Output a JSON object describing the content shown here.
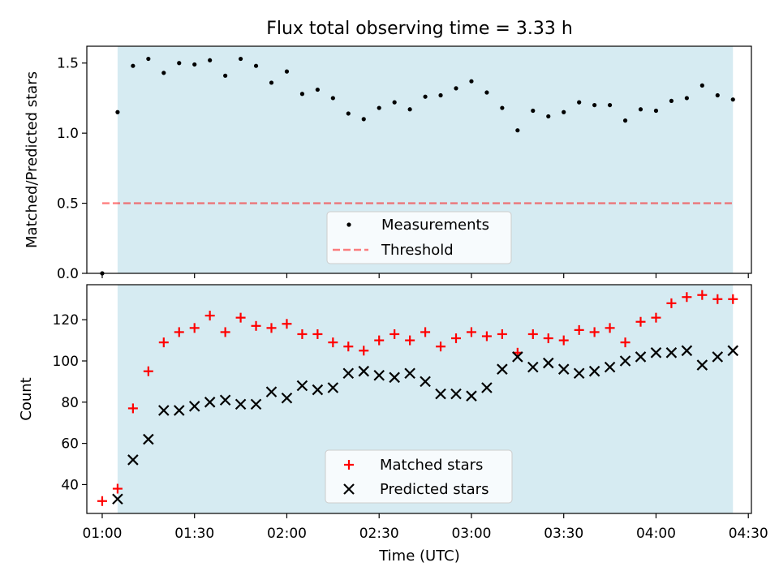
{
  "title": "Flux total observing time = 3.33 h",
  "colors": {
    "band": "#add8e6",
    "threshold": "#ff0000",
    "measurements": "#000000",
    "matched": "#ff0000",
    "predicted": "#000000"
  },
  "chart_data": [
    {
      "type": "scatter",
      "ylabel": "Matched/Predicted stars",
      "xlim": [
        "00:55",
        "04:31"
      ],
      "ylim": [
        0,
        1.62
      ],
      "yticks": [
        "0.0",
        "0.5",
        "1.0",
        "1.5"
      ],
      "grid": false,
      "legend_position": "lower center",
      "shaded_span": [
        "01:05",
        "04:25"
      ],
      "series": [
        {
          "name": "Measurements",
          "marker": "dot",
          "x": [
            "01:00",
            "01:05",
            "01:10",
            "01:15",
            "01:20",
            "01:25",
            "01:30",
            "01:35",
            "01:40",
            "01:45",
            "01:50",
            "01:55",
            "02:00",
            "02:05",
            "02:10",
            "02:15",
            "02:20",
            "02:25",
            "02:30",
            "02:35",
            "02:40",
            "02:45",
            "02:50",
            "02:55",
            "03:00",
            "03:05",
            "03:10",
            "03:15",
            "03:20",
            "03:25",
            "03:30",
            "03:35",
            "03:40",
            "03:45",
            "03:50",
            "03:55",
            "04:00",
            "04:05",
            "04:10",
            "04:15",
            "04:20",
            "04:25"
          ],
          "y": [
            0.0,
            1.15,
            1.48,
            1.53,
            1.43,
            1.5,
            1.49,
            1.52,
            1.41,
            1.53,
            1.48,
            1.36,
            1.44,
            1.28,
            1.31,
            1.25,
            1.14,
            1.1,
            1.18,
            1.22,
            1.17,
            1.26,
            1.27,
            1.32,
            1.37,
            1.29,
            1.18,
            1.02,
            1.16,
            1.12,
            1.15,
            1.22,
            1.2,
            1.2,
            1.09,
            1.17,
            1.16,
            1.23,
            1.25,
            1.34,
            1.27,
            1.24
          ]
        },
        {
          "name": "Threshold",
          "style": "dashed",
          "x": [
            "01:00",
            "04:25"
          ],
          "y": [
            0.5,
            0.5
          ]
        }
      ]
    },
    {
      "type": "scatter",
      "xlabel": "Time (UTC)",
      "ylabel": "Count",
      "xlim": [
        "00:55",
        "04:31"
      ],
      "ylim": [
        26,
        137
      ],
      "xticks": [
        "01:00",
        "01:30",
        "02:00",
        "02:30",
        "03:00",
        "03:30",
        "04:00",
        "04:30"
      ],
      "yticks": [
        "40",
        "60",
        "80",
        "100",
        "120"
      ],
      "grid": false,
      "legend_position": "lower center",
      "shaded_span": [
        "01:05",
        "04:25"
      ],
      "series": [
        {
          "name": "Matched stars",
          "marker": "plus",
          "x": [
            "01:00",
            "01:05",
            "01:10",
            "01:15",
            "01:20",
            "01:25",
            "01:30",
            "01:35",
            "01:40",
            "01:45",
            "01:50",
            "01:55",
            "02:00",
            "02:05",
            "02:10",
            "02:15",
            "02:20",
            "02:25",
            "02:30",
            "02:35",
            "02:40",
            "02:45",
            "02:50",
            "02:55",
            "03:00",
            "03:05",
            "03:10",
            "03:15",
            "03:20",
            "03:25",
            "03:30",
            "03:35",
            "03:40",
            "03:45",
            "03:50",
            "03:55",
            "04:00",
            "04:05",
            "04:10",
            "04:15",
            "04:20",
            "04:25"
          ],
          "y": [
            32,
            38,
            77,
            95,
            109,
            114,
            116,
            122,
            114,
            121,
            117,
            116,
            118,
            113,
            113,
            109,
            107,
            105,
            110,
            113,
            110,
            114,
            107,
            111,
            114,
            112,
            113,
            104,
            113,
            111,
            110,
            115,
            114,
            116,
            109,
            119,
            121,
            128,
            131,
            132,
            130,
            130
          ]
        },
        {
          "name": "Predicted stars",
          "marker": "x",
          "x": [
            "01:05",
            "01:10",
            "01:15",
            "01:20",
            "01:25",
            "01:30",
            "01:35",
            "01:40",
            "01:45",
            "01:50",
            "01:55",
            "02:00",
            "02:05",
            "02:10",
            "02:15",
            "02:20",
            "02:25",
            "02:30",
            "02:35",
            "02:40",
            "02:45",
            "02:50",
            "02:55",
            "03:00",
            "03:05",
            "03:10",
            "03:15",
            "03:20",
            "03:25",
            "03:30",
            "03:35",
            "03:40",
            "03:45",
            "03:50",
            "03:55",
            "04:00",
            "04:05",
            "04:10",
            "04:15",
            "04:20",
            "04:25"
          ],
          "y": [
            33,
            52,
            62,
            76,
            76,
            78,
            80,
            81,
            79,
            79,
            85,
            82,
            88,
            86,
            87,
            94,
            95,
            93,
            92,
            94,
            90,
            84,
            84,
            83,
            87,
            96,
            102,
            97,
            99,
            96,
            94,
            95,
            97,
            100,
            102,
            104,
            104,
            105,
            98,
            102,
            105
          ]
        }
      ]
    }
  ]
}
